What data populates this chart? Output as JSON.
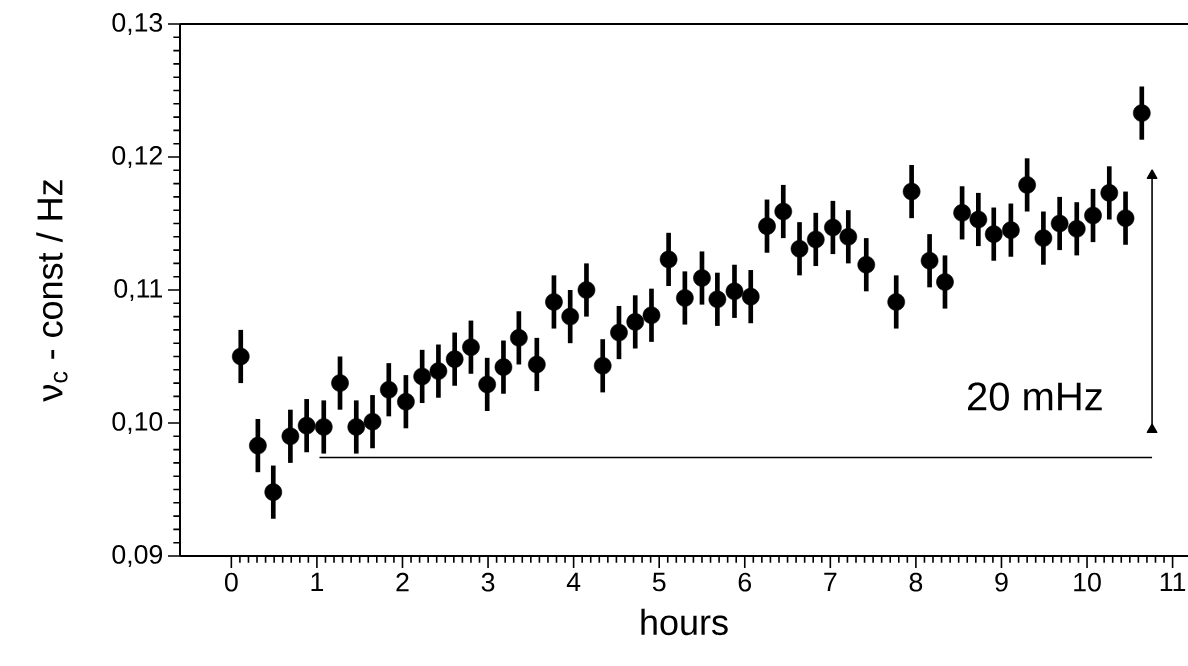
{
  "chart_data": {
    "type": "scatter",
    "xlabel": "hours",
    "ylabel": "ν$_{c}$ - const / Hz",
    "xlim": [
      -0.6,
      11.18
    ],
    "ylim": [
      0.09,
      0.13
    ],
    "xticks": [
      0,
      1,
      2,
      3,
      4,
      5,
      6,
      7,
      8,
      9,
      10,
      11
    ],
    "yticks": [
      {
        "value": 0.09,
        "label": "0,09"
      },
      {
        "value": 0.1,
        "label": "0,10"
      },
      {
        "value": 0.11,
        "label": "0,11"
      },
      {
        "value": 0.12,
        "label": "0,12"
      },
      {
        "value": 0.13,
        "label": "0,13"
      }
    ],
    "series": [
      {
        "marker": "circle",
        "color": "#000000",
        "x": [
          0.11,
          0.31,
          0.49,
          0.69,
          0.88,
          1.08,
          1.27,
          1.46,
          1.65,
          1.84,
          2.04,
          2.23,
          2.42,
          2.61,
          2.8,
          2.99,
          3.18,
          3.36,
          3.57,
          3.77,
          3.96,
          4.15,
          4.34,
          4.53,
          4.72,
          4.91,
          5.11,
          5.3,
          5.5,
          5.68,
          5.88,
          6.07,
          6.26,
          6.45,
          6.64,
          6.83,
          7.03,
          7.21,
          7.42,
          7.77,
          7.95,
          8.16,
          8.34,
          8.54,
          8.73,
          8.91,
          9.11,
          9.3,
          9.49,
          9.68,
          9.88,
          10.07,
          10.26,
          10.45,
          10.64
        ],
        "values": [
          0.105,
          0.0983,
          0.0948,
          0.099,
          0.0998,
          0.0997,
          0.103,
          0.0997,
          0.1001,
          0.1025,
          0.1016,
          0.1035,
          0.1039,
          0.1048,
          0.1057,
          0.1029,
          0.1042,
          0.1064,
          0.1044,
          0.1091,
          0.108,
          0.11,
          0.1043,
          0.1068,
          0.1076,
          0.1081,
          0.1123,
          0.1094,
          0.1109,
          0.1093,
          0.1099,
          0.1095,
          0.1148,
          0.1159,
          0.1131,
          0.1138,
          0.1147,
          0.114,
          0.1119,
          0.1091,
          0.1174,
          0.1122,
          0.1106,
          0.1158,
          0.1153,
          0.1142,
          0.1145,
          0.1179,
          0.1139,
          0.115,
          0.1146,
          0.1156,
          0.1173,
          0.1154,
          0.1233
        ],
        "errors": [
          0.002,
          0.002,
          0.002,
          0.002,
          0.002,
          0.002,
          0.002,
          0.002,
          0.002,
          0.002,
          0.002,
          0.002,
          0.002,
          0.002,
          0.002,
          0.002,
          0.002,
          0.002,
          0.002,
          0.002,
          0.002,
          0.002,
          0.002,
          0.002,
          0.002,
          0.002,
          0.002,
          0.002,
          0.002,
          0.002,
          0.002,
          0.002,
          0.002,
          0.002,
          0.002,
          0.002,
          0.002,
          0.002,
          0.002,
          0.002,
          0.002,
          0.002,
          0.002,
          0.002,
          0.002,
          0.002,
          0.002,
          0.002,
          0.002,
          0.002,
          0.002,
          0.002,
          0.002,
          0.002,
          0.002
        ]
      },
      {
        "type": "line",
        "marker": "none",
        "color": "#000000",
        "x": [
          1.03,
          10.76
        ],
        "values": [
          0.0974,
          0.0974
        ]
      },
      {
        "type": "line",
        "marker": "triangle",
        "color": "#000000",
        "x": [
          10.76,
          10.76
        ],
        "values": [
          0.0995,
          0.1186
        ]
      }
    ],
    "annotations": [
      "20 mHz"
    ]
  }
}
